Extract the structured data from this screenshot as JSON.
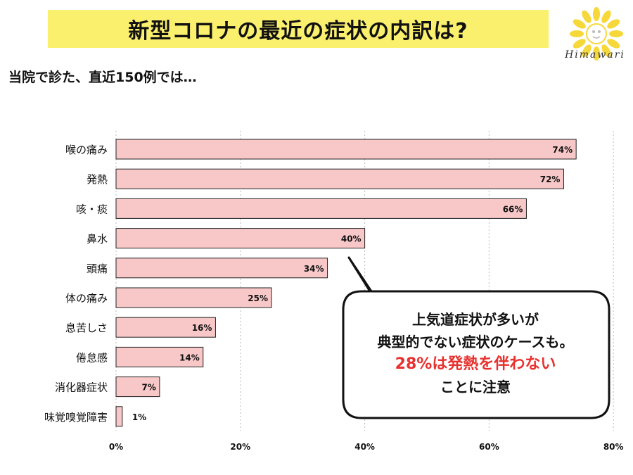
{
  "header": {
    "title": "新型コロナの最近の症状の内訳は?",
    "subtitle": "当院で診た、直近150例では…"
  },
  "logo": {
    "name": "sunflower-logo",
    "text": "Himawari"
  },
  "callout": {
    "line1": "上気道症状が多いが",
    "line2": "典型的でない症状のケースも。",
    "line3": "28%は発熱を伴わない",
    "line4": "ことに注意"
  },
  "colors": {
    "bar": "#f8c8c8",
    "bar_stroke": "#222222",
    "title_bg": "#fbf06e",
    "highlight": "#e8312f"
  },
  "chart_data": {
    "type": "bar",
    "orientation": "horizontal",
    "categories": [
      "喉の痛み",
      "発熱",
      "咳・痰",
      "鼻水",
      "頭痛",
      "体の痛み",
      "息苦しさ",
      "倦怠感",
      "消化器症状",
      "味覚嗅覚障害"
    ],
    "values": [
      74,
      72,
      66,
      40,
      34,
      25,
      16,
      14,
      7,
      1
    ],
    "value_labels": [
      "74%",
      "72%",
      "66%",
      "40%",
      "34%",
      "25%",
      "16%",
      "14%",
      "7%",
      "1%"
    ],
    "xlim": [
      0,
      80
    ],
    "xticks": [
      0,
      20,
      40,
      60,
      80
    ],
    "xtick_labels": [
      "0%",
      "20%",
      "40%",
      "60%",
      "80%"
    ],
    "grid": "vertical-dotted",
    "legend": "none"
  }
}
